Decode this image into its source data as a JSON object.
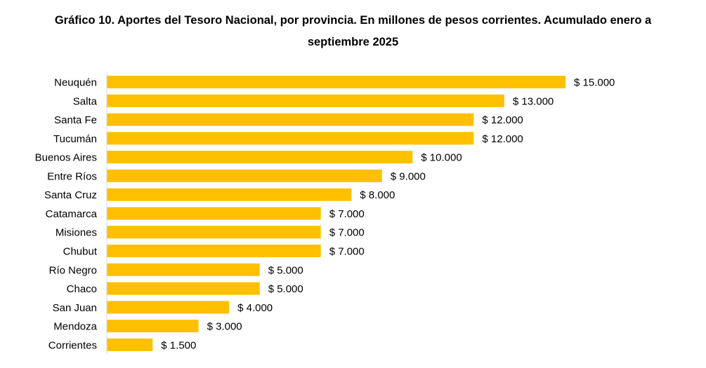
{
  "chart_data": {
    "type": "bar",
    "orientation": "horizontal",
    "title": "Gráfico 10. Aportes del Tesoro Nacional, por provincia. En millones de pesos corrientes. Acumulado enero a septiembre 2025",
    "xlabel": "",
    "ylabel": "",
    "categories": [
      "Neuquén",
      "Salta",
      "Santa Fe",
      "Tucumán",
      "Buenos Aires",
      "Entre Ríos",
      "Santa Cruz",
      "Catamarca",
      "Misiones",
      "Chubut",
      "Río Negro",
      "Chaco",
      "San Juan",
      "Mendoza",
      "Corrientes"
    ],
    "values": [
      15000,
      13000,
      12000,
      12000,
      10000,
      9000,
      8000,
      7000,
      7000,
      7000,
      5000,
      5000,
      4000,
      3000,
      1500
    ],
    "value_labels": [
      "$ 15.000",
      "$ 13.000",
      "$ 12.000",
      "$ 12.000",
      "$ 10.000",
      "$ 9.000",
      "$ 8.000",
      "$ 7.000",
      "$ 7.000",
      "$ 7.000",
      "$ 5.000",
      "$ 5.000",
      "$ 4.000",
      "$ 3.000",
      "$ 1.500"
    ],
    "xlim": [
      0,
      15000
    ],
    "grid": false,
    "bar_color": "#FFC000",
    "axis_color": "#D9D9D9"
  }
}
